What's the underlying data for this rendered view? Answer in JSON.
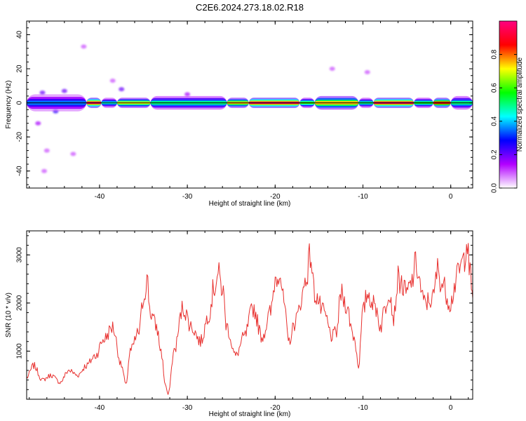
{
  "title": "C2E6.2024.273.18.02.R18",
  "colors": {
    "snr_line": "#e8302e",
    "frame": "#000000",
    "background": "#ffffff",
    "colormap": [
      "#ffffff",
      "#b200ff",
      "#0000ff",
      "#00ffff",
      "#00ff00",
      "#ffff00",
      "#ff0000",
      "#ff0080"
    ]
  },
  "chart_data": [
    {
      "type": "heatmap",
      "xlabel": "Height of straight line (km)",
      "ylabel": "Frequency (Hz)",
      "xlim": [
        -48.3,
        2.5
      ],
      "ylim": [
        -50,
        48
      ],
      "xticks": [
        -40,
        -30,
        -20,
        -10,
        0
      ],
      "yticks": [
        -40,
        -20,
        0,
        20,
        40
      ],
      "colorbar": {
        "label": "Normalized spectral amplitude",
        "range": [
          0.0,
          1.0
        ],
        "ticks": [
          "0.0",
          "0.2",
          "0.4",
          "0.6",
          "0.8"
        ]
      },
      "centerline_frequency": 0,
      "band_segments": [
        {
          "x": [
            -48.3,
            -41.5
          ],
          "level": 0.35,
          "width_hz": 10
        },
        {
          "x": [
            -41.5,
            -39.8
          ],
          "level": 0.95,
          "width_hz": 6
        },
        {
          "x": [
            -39.8,
            -38.0
          ],
          "level": 0.45,
          "width_hz": 6
        },
        {
          "x": [
            -38.0,
            -34.2
          ],
          "level": 0.7,
          "width_hz": 6
        },
        {
          "x": [
            -34.2,
            -25.5
          ],
          "level": 0.5,
          "width_hz": 8
        },
        {
          "x": [
            -25.5,
            -23.0
          ],
          "level": 0.75,
          "width_hz": 6
        },
        {
          "x": [
            -23.0,
            -17.2
          ],
          "level": 0.95,
          "width_hz": 6
        },
        {
          "x": [
            -17.2,
            -15.5
          ],
          "level": 0.6,
          "width_hz": 6
        },
        {
          "x": [
            -15.5,
            -10.5
          ],
          "level": 0.75,
          "width_hz": 8
        },
        {
          "x": [
            -10.5,
            -8.8
          ],
          "level": 0.5,
          "width_hz": 6
        },
        {
          "x": [
            -8.8,
            -4.2
          ],
          "level": 0.95,
          "width_hz": 6
        },
        {
          "x": [
            -4.2,
            -2.0
          ],
          "level": 0.55,
          "width_hz": 6
        },
        {
          "x": [
            -2.0,
            0.0
          ],
          "level": 0.85,
          "width_hz": 6
        },
        {
          "x": [
            0.0,
            2.5
          ],
          "level": 0.5,
          "width_hz": 8
        }
      ],
      "scatter_blobs": [
        {
          "x": -46.5,
          "y": 6,
          "level": 0.2
        },
        {
          "x": -45.0,
          "y": -5,
          "level": 0.25
        },
        {
          "x": -44.0,
          "y": 7,
          "level": 0.2
        },
        {
          "x": -47.0,
          "y": -12,
          "level": 0.15
        },
        {
          "x": -46.0,
          "y": -28,
          "level": 0.1
        },
        {
          "x": -46.3,
          "y": -40,
          "level": 0.1
        },
        {
          "x": -41.8,
          "y": 33,
          "level": 0.1
        },
        {
          "x": -37.5,
          "y": 8,
          "level": 0.2
        },
        {
          "x": -38.5,
          "y": 13,
          "level": 0.1
        },
        {
          "x": -30.0,
          "y": 5,
          "level": 0.15
        },
        {
          "x": -13.5,
          "y": 20,
          "level": 0.1
        },
        {
          "x": -9.5,
          "y": 18,
          "level": 0.1
        },
        {
          "x": -43.0,
          "y": -30,
          "level": 0.1
        }
      ]
    },
    {
      "type": "line",
      "xlabel": "Height of straight line (km)",
      "ylabel": "SNR (10 * v/v)",
      "xlim": [
        -48.3,
        2.5
      ],
      "ylim": [
        0,
        3500
      ],
      "xticks": [
        -40,
        -30,
        -20,
        -10,
        0
      ],
      "yticks": [
        1000,
        2000,
        3000
      ],
      "series": [
        {
          "x": [
            -48.3,
            -47.5,
            -46.5,
            -45.5,
            -44.5,
            -43.5,
            -42.5,
            -41.5,
            -40.5,
            -39.5,
            -38.5,
            -37.5,
            -37.0,
            -36.5,
            -35.5,
            -35.0,
            -34.6,
            -34.2,
            -33.5,
            -33.0,
            -32.5,
            -32.2,
            -31.5,
            -30.5,
            -29.5,
            -28.5,
            -27.5,
            -27.0,
            -26.5,
            -26.0,
            -25.5,
            -24.5,
            -23.5,
            -22.5,
            -21.5,
            -20.5,
            -20.0,
            -19.5,
            -19.0,
            -18.5,
            -17.5,
            -17.0,
            -16.5,
            -16.0,
            -15.5,
            -14.5,
            -13.5,
            -13.0,
            -12.5,
            -12.0,
            -11.0,
            -10.5,
            -10.0,
            -9.5,
            -8.5,
            -8.0,
            -7.5,
            -7.0,
            -6.5,
            -6.0,
            -5.0,
            -4.5,
            -4.0,
            -3.0,
            -2.0,
            -1.5,
            -1.0,
            0.0,
            0.5,
            1.0,
            1.5,
            1.8,
            2.2,
            2.5
          ],
          "y": [
            450,
            700,
            400,
            500,
            350,
            600,
            500,
            700,
            900,
            1250,
            1500,
            700,
            300,
            1000,
            1400,
            2100,
            2500,
            1800,
            1500,
            1000,
            300,
            100,
            1000,
            1900,
            1500,
            1200,
            1800,
            2300,
            2600,
            2300,
            1500,
            900,
            1300,
            1900,
            1300,
            1800,
            2500,
            2700,
            2000,
            1200,
            1700,
            2100,
            2500,
            3000,
            2200,
            1800,
            1300,
            1400,
            2200,
            2000,
            1300,
            700,
            1800,
            2200,
            1900,
            1500,
            1900,
            2300,
            1700,
            2500,
            2200,
            2400,
            2800,
            2000,
            2100,
            2700,
            2400,
            2000,
            2400,
            2700,
            2900,
            3300,
            2600,
            2100
          ]
        }
      ]
    }
  ]
}
